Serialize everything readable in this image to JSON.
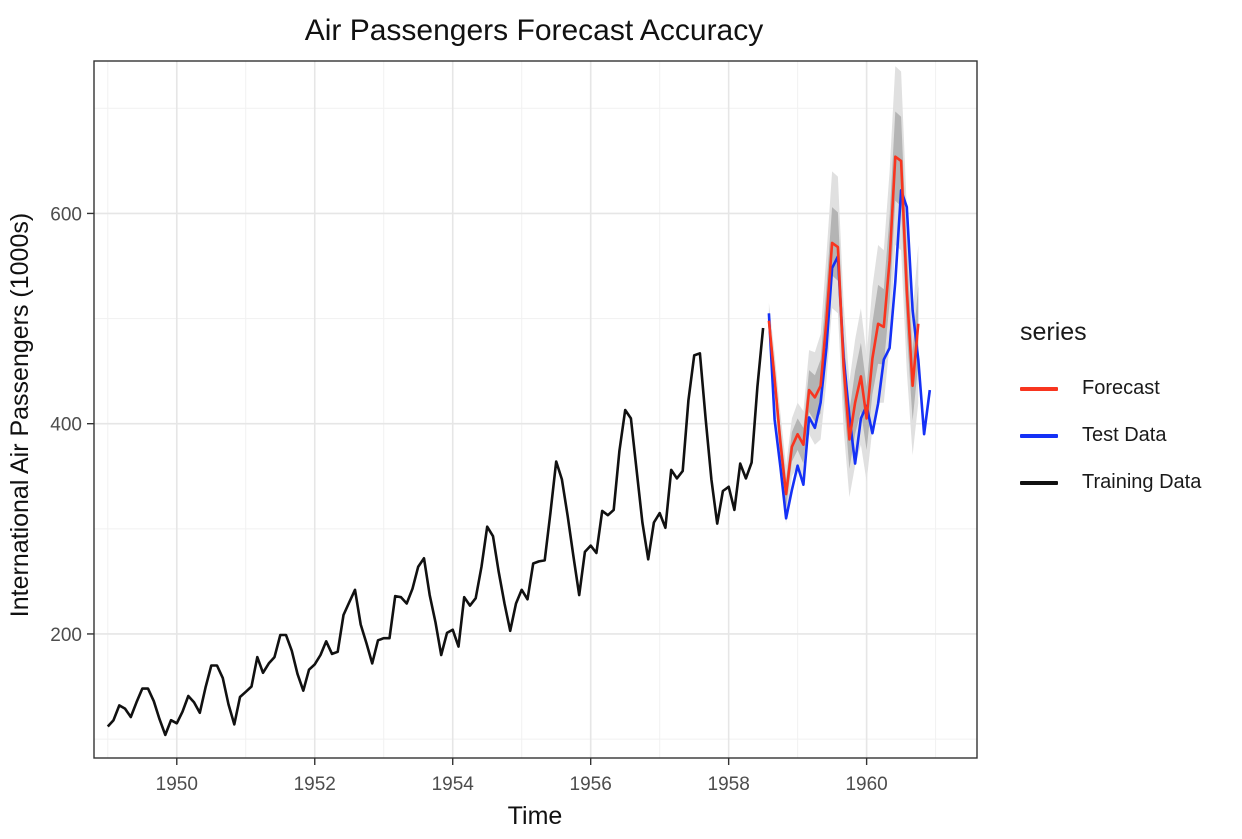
{
  "chart_data": {
    "type": "line",
    "title": "Air Passengers Forecast Accuracy",
    "xlabel": "Time",
    "ylabel": "International Air Passengers (1000s)",
    "xlim": [
      1948.8,
      1961.6
    ],
    "ylim": [
      82,
      745
    ],
    "xticks": [
      1950,
      1952,
      1954,
      1956,
      1958,
      1960
    ],
    "yticks": [
      200,
      400,
      600
    ],
    "grid": true,
    "legend": {
      "title": "series",
      "position": "right"
    },
    "series": [
      {
        "name": "Forecast",
        "color": "#f8351f",
        "start": 1958.583,
        "step": 0.083333,
        "values": [
          498,
          443,
          382,
          333,
          378,
          390,
          380,
          432,
          425,
          436,
          498,
          572,
          568,
          455,
          385,
          420,
          445,
          405,
          462,
          495,
          492,
          555,
          654,
          650,
          527,
          436,
          495
        ],
        "interval_80": {
          "lower": [
            485,
            420,
            355,
            305,
            350,
            360,
            345,
            390,
            380,
            385,
            440,
            510,
            505,
            395,
            330,
            360,
            380,
            345,
            395,
            420,
            420,
            475,
            570,
            565,
            450,
            370,
            420
          ],
          "upper": [
            515,
            467,
            410,
            360,
            405,
            420,
            412,
            470,
            468,
            485,
            560,
            640,
            635,
            515,
            440,
            480,
            510,
            465,
            530,
            570,
            565,
            640,
            740,
            735,
            605,
            505,
            570
          ]
        },
        "interval_95": {
          "lower": [
            490,
            432,
            368,
            319,
            364,
            375,
            362,
            411,
            402,
            410,
            469,
            541,
            536,
            425,
            357,
            390,
            412,
            375,
            428,
            457,
            456,
            515,
            612,
            607,
            488,
            403,
            457
          ],
          "upper": [
            506,
            455,
            396,
            347,
            392,
            405,
            396,
            451,
            446,
            461,
            529,
            606,
            601,
            485,
            412,
            450,
            477,
            435,
            496,
            532,
            528,
            597,
            697,
            692,
            566,
            469,
            532
          ]
        }
      },
      {
        "name": "Test Data",
        "color": "#1531f6",
        "start": 1958.583,
        "step": 0.083333,
        "values": [
          505,
          404,
          359,
          310,
          337,
          360,
          342,
          406,
          396,
          420,
          472,
          548,
          559,
          463,
          407,
          362,
          405,
          417,
          391,
          419,
          461,
          472,
          535,
          622,
          606,
          508,
          461,
          390,
          432
        ]
      },
      {
        "name": "Training Data",
        "color": "#111111",
        "start": 1949.0,
        "step": 0.083333,
        "values": [
          112,
          118,
          132,
          129,
          121,
          135,
          148,
          148,
          136,
          119,
          104,
          118,
          115,
          126,
          141,
          135,
          125,
          149,
          170,
          170,
          158,
          133,
          114,
          140,
          145,
          150,
          178,
          163,
          172,
          178,
          199,
          199,
          184,
          162,
          146,
          166,
          171,
          180,
          193,
          181,
          183,
          218,
          230,
          242,
          209,
          191,
          172,
          194,
          196,
          196,
          236,
          235,
          229,
          243,
          264,
          272,
          237,
          211,
          180,
          201,
          204,
          188,
          235,
          227,
          234,
          264,
          302,
          293,
          259,
          229,
          203,
          229,
          242,
          233,
          267,
          269,
          270,
          315,
          364,
          347,
          312,
          274,
          237,
          278,
          284,
          277,
          317,
          313,
          318,
          374,
          413,
          405,
          355,
          306,
          271,
          306,
          315,
          301,
          356,
          348,
          355,
          422,
          465,
          467,
          404,
          347,
          305,
          336,
          340,
          318,
          362,
          348,
          363,
          435,
          491
        ]
      }
    ]
  }
}
